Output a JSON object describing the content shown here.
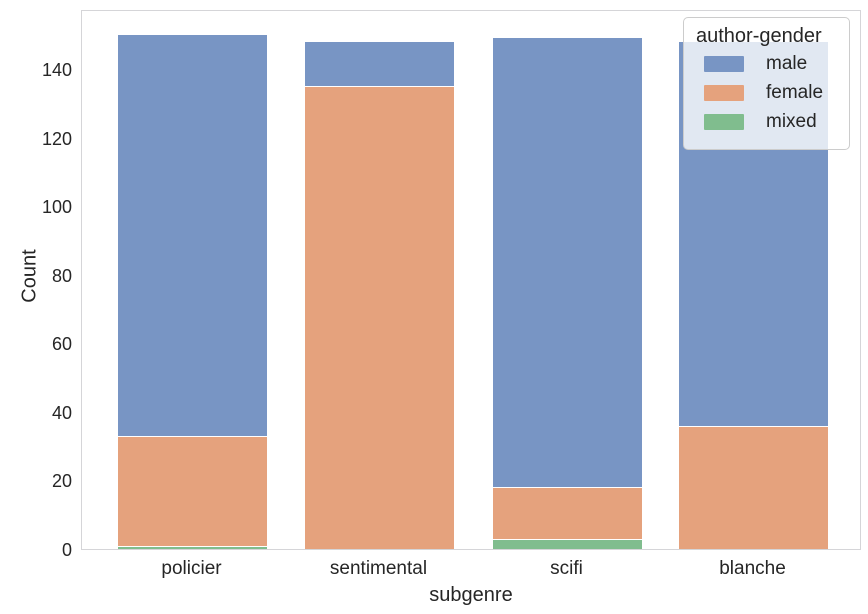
{
  "chart_data": {
    "type": "bar",
    "stacked": true,
    "title": "",
    "xlabel": "subgenre",
    "ylabel": "Count",
    "categories": [
      "policier",
      "sentimental",
      "scifi",
      "blanche"
    ],
    "series": [
      {
        "name": "male",
        "color": "#7895C4",
        "values": [
          117,
          13,
          131,
          112
        ]
      },
      {
        "name": "female",
        "color": "#E5A27D",
        "values": [
          32,
          135,
          15,
          36
        ]
      },
      {
        "name": "mixed",
        "color": "#80BD8E",
        "values": [
          1,
          0,
          3,
          0
        ]
      }
    ],
    "totals": [
      150,
      148,
      149,
      148
    ],
    "yticks": [
      0,
      20,
      40,
      60,
      80,
      100,
      120,
      140
    ],
    "ylim": [
      0,
      157.5
    ],
    "grid": false,
    "legend": {
      "title": "author-gender",
      "position": "upper right",
      "entries": [
        "male",
        "female",
        "mixed"
      ]
    },
    "colors": {
      "male": "#7895C4",
      "female": "#E5A27D",
      "mixed": "#80BD8E",
      "text": "#262626",
      "spine": "#d5d5d8"
    }
  }
}
